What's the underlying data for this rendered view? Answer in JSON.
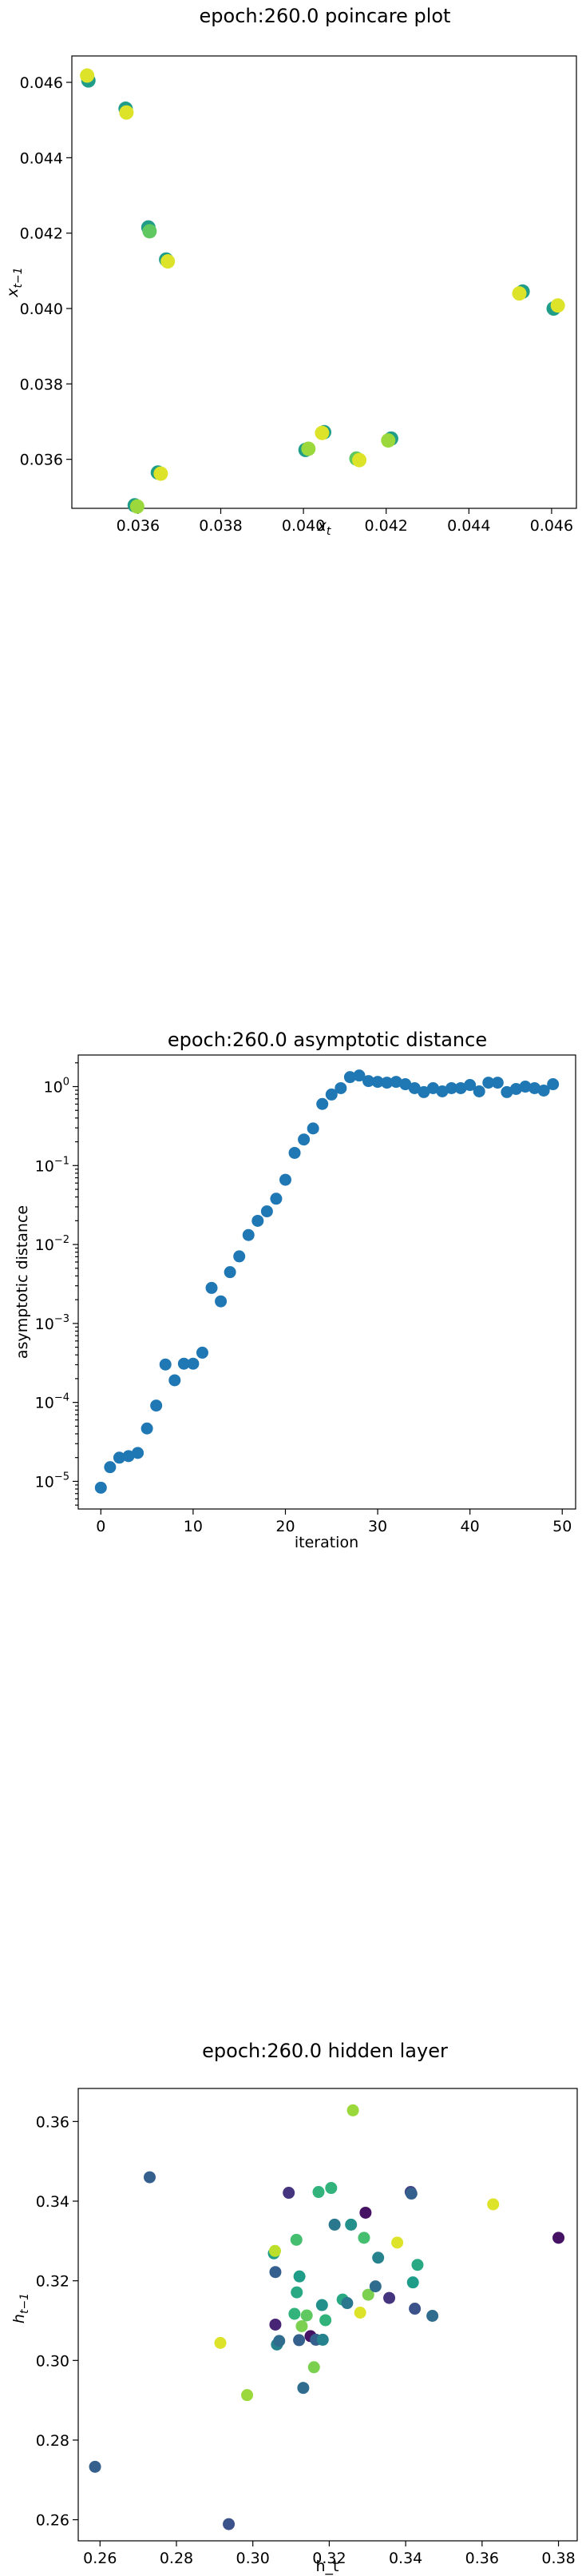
{
  "chart_data": [
    {
      "type": "scatter",
      "title": "epoch:260.0 poincare plot",
      "xlabel": "x_t",
      "ylabel": "x_{t-1}",
      "xlim": [
        0.0344,
        0.0466
      ],
      "ylim": [
        0.0347,
        0.0467
      ],
      "xticks": [
        0.036,
        0.038,
        0.04,
        0.042,
        0.044,
        0.046
      ],
      "xtick_labels": [
        "0.036",
        "0.038",
        "0.040",
        "0.042",
        "0.044",
        "0.046"
      ],
      "yticks": [
        0.036,
        0.038,
        0.04,
        0.042,
        0.044,
        0.046
      ],
      "ytick_labels": [
        "0.036",
        "0.038",
        "0.040",
        "0.042",
        "0.044",
        "0.046"
      ],
      "grid": false,
      "colormap": "viridis",
      "points": [
        {
          "x": 0.0348,
          "y": 0.04605,
          "c": 0.55
        },
        {
          "x": 0.03477,
          "y": 0.04618,
          "c": 0.95
        },
        {
          "x": 0.0357,
          "y": 0.0453,
          "c": 0.55
        },
        {
          "x": 0.03572,
          "y": 0.0452,
          "c": 0.95
        },
        {
          "x": 0.03625,
          "y": 0.04215,
          "c": 0.55
        },
        {
          "x": 0.03628,
          "y": 0.04205,
          "c": 0.75
        },
        {
          "x": 0.03668,
          "y": 0.0413,
          "c": 0.55
        },
        {
          "x": 0.03672,
          "y": 0.04125,
          "c": 0.95
        },
        {
          "x": 0.0453,
          "y": 0.04045,
          "c": 0.55
        },
        {
          "x": 0.04522,
          "y": 0.0404,
          "c": 0.95
        },
        {
          "x": 0.04605,
          "y": 0.04,
          "c": 0.55
        },
        {
          "x": 0.04615,
          "y": 0.04008,
          "c": 0.95
        },
        {
          "x": 0.04212,
          "y": 0.03655,
          "c": 0.55
        },
        {
          "x": 0.04205,
          "y": 0.0365,
          "c": 0.85
        },
        {
          "x": 0.0405,
          "y": 0.03672,
          "c": 0.55
        },
        {
          "x": 0.04045,
          "y": 0.0367,
          "c": 0.95
        },
        {
          "x": 0.04005,
          "y": 0.03625,
          "c": 0.55
        },
        {
          "x": 0.04012,
          "y": 0.03628,
          "c": 0.85
        },
        {
          "x": 0.04128,
          "y": 0.03602,
          "c": 0.75
        },
        {
          "x": 0.04135,
          "y": 0.03598,
          "c": 0.95
        },
        {
          "x": 0.03648,
          "y": 0.03565,
          "c": 0.55
        },
        {
          "x": 0.03655,
          "y": 0.03562,
          "c": 0.95
        },
        {
          "x": 0.03592,
          "y": 0.03478,
          "c": 0.55
        },
        {
          "x": 0.03598,
          "y": 0.03475,
          "c": 0.85
        }
      ]
    },
    {
      "type": "scatter",
      "title": "epoch:260.0 asymptotic distance",
      "xlabel": "iteration",
      "ylabel": "asymptotic distance",
      "xlim": [
        -2.45,
        51.45
      ],
      "ylog": true,
      "ylim_log10": [
        -5.35,
        0.4
      ],
      "xticks": [
        0,
        10,
        20,
        30,
        40,
        50
      ],
      "xtick_labels": [
        "0",
        "10",
        "20",
        "30",
        "40",
        "50"
      ],
      "yticks_exp": [
        -5,
        -4,
        -3,
        -2,
        -1,
        0
      ],
      "ytick_base": "10",
      "ytick_exponents": [
        "−5",
        "−4",
        "−3",
        "−2",
        "−1",
        "0"
      ],
      "grid": false,
      "color": "#1f77b4",
      "x": [
        0,
        1,
        2,
        3,
        4,
        5,
        6,
        7,
        8,
        9,
        10,
        11,
        12,
        13,
        14,
        15,
        16,
        17,
        18,
        19,
        20,
        21,
        22,
        23,
        24,
        25,
        26,
        27,
        28,
        29,
        30,
        31,
        32,
        33,
        34,
        35,
        36,
        37,
        38,
        39,
        40,
        41,
        42,
        43,
        44,
        45,
        46,
        47,
        48,
        49
      ],
      "log10_y": [
        -5.08,
        -4.82,
        -4.7,
        -4.68,
        -4.64,
        -4.33,
        -4.04,
        -3.52,
        -3.72,
        -3.51,
        -3.51,
        -3.37,
        -2.55,
        -2.72,
        -2.35,
        -2.15,
        -1.88,
        -1.7,
        -1.58,
        -1.42,
        -1.18,
        -0.84,
        -0.67,
        -0.53,
        -0.22,
        -0.1,
        -0.02,
        0.12,
        0.14,
        0.07,
        0.06,
        0.05,
        0.06,
        0.03,
        -0.02,
        -0.07,
        -0.02,
        -0.06,
        -0.02,
        -0.02,
        0.02,
        -0.06,
        0.05,
        0.05,
        -0.07,
        -0.03,
        0.0,
        -0.02,
        -0.05,
        0.03
      ]
    },
    {
      "type": "scatter",
      "title": "epoch:260.0 hidden layer",
      "xlabel": "h_t",
      "ylabel": "h_{t-1}",
      "xlim": [
        0.2543,
        0.3849
      ],
      "ylim": [
        0.2547,
        0.3683
      ],
      "xticks": [
        0.26,
        0.28,
        0.3,
        0.32,
        0.34,
        0.36,
        0.38
      ],
      "xtick_labels": [
        "0.26",
        "0.28",
        "0.30",
        "0.32",
        "0.34",
        "0.36",
        "0.38"
      ],
      "yticks": [
        0.26,
        0.28,
        0.3,
        0.32,
        0.34,
        0.36
      ],
      "ytick_labels": [
        "0.26",
        "0.28",
        "0.30",
        "0.32",
        "0.34",
        "0.36"
      ],
      "grid": false,
      "colormap": "viridis",
      "points": [
        {
          "x": 0.2587,
          "y": 0.2733,
          "c": 0.3
        },
        {
          "x": 0.273,
          "y": 0.346,
          "c": 0.3
        },
        {
          "x": 0.2915,
          "y": 0.3044,
          "c": 0.95
        },
        {
          "x": 0.2937,
          "y": 0.2589,
          "c": 0.25
        },
        {
          "x": 0.2985,
          "y": 0.2913,
          "c": 0.85
        },
        {
          "x": 0.3055,
          "y": 0.3269,
          "c": 0.55
        },
        {
          "x": 0.3058,
          "y": 0.3275,
          "c": 0.9
        },
        {
          "x": 0.3059,
          "y": 0.3222,
          "c": 0.3
        },
        {
          "x": 0.3059,
          "y": 0.309,
          "c": 0.1
        },
        {
          "x": 0.3063,
          "y": 0.304,
          "c": 0.45
        },
        {
          "x": 0.3069,
          "y": 0.3049,
          "c": 0.35
        },
        {
          "x": 0.3094,
          "y": 0.3421,
          "c": 0.15
        },
        {
          "x": 0.3109,
          "y": 0.3117,
          "c": 0.65
        },
        {
          "x": 0.3114,
          "y": 0.3303,
          "c": 0.7
        },
        {
          "x": 0.3115,
          "y": 0.3171,
          "c": 0.6
        },
        {
          "x": 0.3122,
          "y": 0.3211,
          "c": 0.55
        },
        {
          "x": 0.3121,
          "y": 0.3051,
          "c": 0.3
        },
        {
          "x": 0.3128,
          "y": 0.3086,
          "c": 0.8
        },
        {
          "x": 0.3132,
          "y": 0.2931,
          "c": 0.35
        },
        {
          "x": 0.3141,
          "y": 0.3113,
          "c": 0.75
        },
        {
          "x": 0.3151,
          "y": 0.3061,
          "c": 0.05
        },
        {
          "x": 0.3165,
          "y": 0.3052,
          "c": 0.3
        },
        {
          "x": 0.316,
          "y": 0.2983,
          "c": 0.8
        },
        {
          "x": 0.3172,
          "y": 0.3423,
          "c": 0.65
        },
        {
          "x": 0.3181,
          "y": 0.3139,
          "c": 0.5
        },
        {
          "x": 0.3183,
          "y": 0.3052,
          "c": 0.45
        },
        {
          "x": 0.319,
          "y": 0.3101,
          "c": 0.65
        },
        {
          "x": 0.3205,
          "y": 0.3433,
          "c": 0.65
        },
        {
          "x": 0.3214,
          "y": 0.3341,
          "c": 0.4
        },
        {
          "x": 0.3235,
          "y": 0.3153,
          "c": 0.6
        },
        {
          "x": 0.3247,
          "y": 0.3144,
          "c": 0.4
        },
        {
          "x": 0.3257,
          "y": 0.3341,
          "c": 0.5
        },
        {
          "x": 0.3262,
          "y": 0.3628,
          "c": 0.85
        },
        {
          "x": 0.3281,
          "y": 0.312,
          "c": 0.95
        },
        {
          "x": 0.3295,
          "y": 0.3371,
          "c": 0.05
        },
        {
          "x": 0.3291,
          "y": 0.3308,
          "c": 0.7
        },
        {
          "x": 0.3302,
          "y": 0.3165,
          "c": 0.8
        },
        {
          "x": 0.3328,
          "y": 0.3258,
          "c": 0.45
        },
        {
          "x": 0.3321,
          "y": 0.3186,
          "c": 0.35
        },
        {
          "x": 0.3357,
          "y": 0.3157,
          "c": 0.15
        },
        {
          "x": 0.3378,
          "y": 0.3296,
          "c": 0.95
        },
        {
          "x": 0.3413,
          "y": 0.3423,
          "c": 0.2
        },
        {
          "x": 0.3415,
          "y": 0.3419,
          "c": 0.3
        },
        {
          "x": 0.3419,
          "y": 0.3196,
          "c": 0.55
        },
        {
          "x": 0.3424,
          "y": 0.313,
          "c": 0.25
        },
        {
          "x": 0.3431,
          "y": 0.324,
          "c": 0.6
        },
        {
          "x": 0.347,
          "y": 0.3112,
          "c": 0.35
        },
        {
          "x": 0.3629,
          "y": 0.3392,
          "c": 0.95
        },
        {
          "x": 0.38,
          "y": 0.3308,
          "c": 0.05
        }
      ]
    }
  ]
}
